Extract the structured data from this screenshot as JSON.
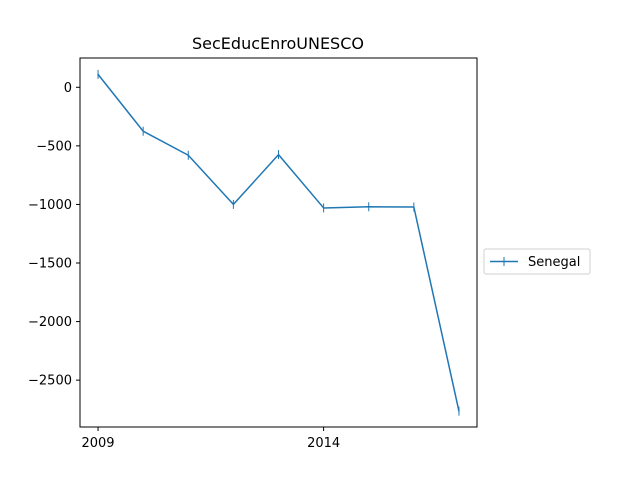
{
  "chart_data": {
    "type": "line",
    "title": "SecEducEnroUNESCO",
    "xlabel": "",
    "ylabel": "",
    "x": [
      2009,
      2010,
      2011,
      2012,
      2013,
      2014,
      2015,
      2016,
      2017
    ],
    "series": [
      {
        "name": "Senegal",
        "color": "#1f77b4",
        "marker": "vertical-tick",
        "values": [
          110,
          -375,
          -580,
          -1000,
          -575,
          -1030,
          -1020,
          -1022,
          -2765
        ]
      }
    ],
    "xlim": [
      2008.6,
      2017.4
    ],
    "ylim": [
      -2900,
      250
    ],
    "xticks": [
      2009,
      2014
    ],
    "yticks": [
      0,
      -500,
      -1000,
      -1500,
      -2000,
      -2500
    ],
    "grid": false,
    "legend_position": "outside-right"
  }
}
